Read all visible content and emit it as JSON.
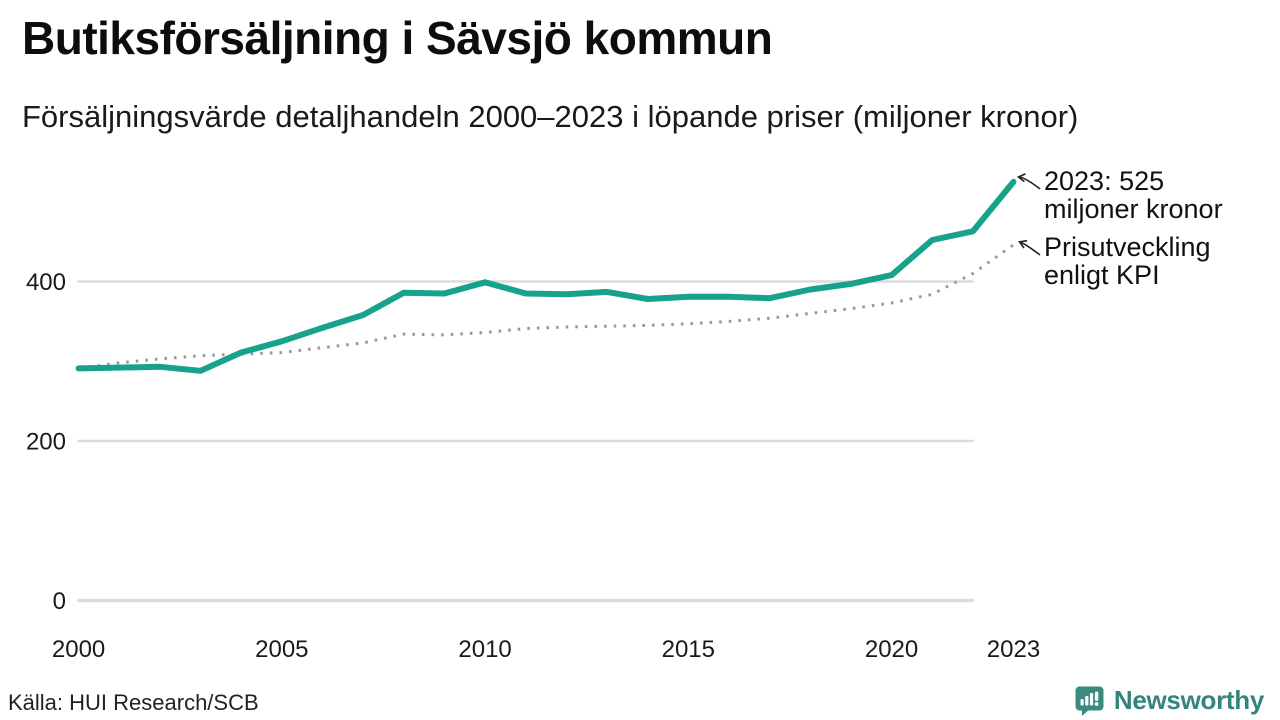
{
  "chart_data": {
    "type": "line",
    "title": "Butiksförsäljning i Sävsjö kommun",
    "subtitle": "Försäljningsvärde detaljhandeln 2000–2023 i löpande priser (miljoner kronor)",
    "xlabel": "",
    "ylabel": "",
    "x": [
      2000,
      2001,
      2002,
      2003,
      2004,
      2005,
      2006,
      2007,
      2008,
      2009,
      2010,
      2011,
      2012,
      2013,
      2014,
      2015,
      2016,
      2017,
      2018,
      2019,
      2020,
      2021,
      2022,
      2023
    ],
    "series": [
      {
        "name": "Försäljningsvärde detaljhandeln (löpande priser)",
        "style": "solid",
        "color": "#17a28c",
        "values": [
          291,
          292,
          293,
          288,
          311,
          325,
          342,
          358,
          386,
          385,
          399,
          385,
          384,
          387,
          378,
          381,
          381,
          379,
          390,
          397,
          408,
          452,
          463,
          525
        ]
      },
      {
        "name": "Prisutveckling enligt KPI",
        "style": "dotted",
        "color": "#999999",
        "values": [
          291,
          298,
          303,
          307,
          309,
          311,
          317,
          323,
          334,
          333,
          336,
          341,
          343,
          344,
          345,
          347,
          350,
          354,
          360,
          366,
          373,
          384,
          410,
          446
        ]
      }
    ],
    "ylim": [
      0,
      560
    ],
    "yticks": [
      0,
      200,
      400
    ],
    "xticks": [
      2000,
      2005,
      2010,
      2015,
      2020,
      2023
    ],
    "grid": "horizontal only",
    "legend_position": "none (annotated directly)",
    "annotations": [
      {
        "lines": [
          "2023: 525",
          "miljoner kronor"
        ],
        "target_series": 0,
        "target_year": 2023
      },
      {
        "lines": [
          "Prisutveckling",
          "enligt KPI"
        ],
        "target_series": 1,
        "target_year": 2023
      }
    ]
  },
  "source": {
    "label": "Källa: HUI Research/SCB"
  },
  "logo": {
    "brand": "Newsworthy"
  },
  "colors": {
    "sales_line": "#17a28c",
    "kpi_line": "#999999",
    "gridline": "#dcdcdc",
    "text": "#111111",
    "logo_teal": "#3a8a80"
  }
}
